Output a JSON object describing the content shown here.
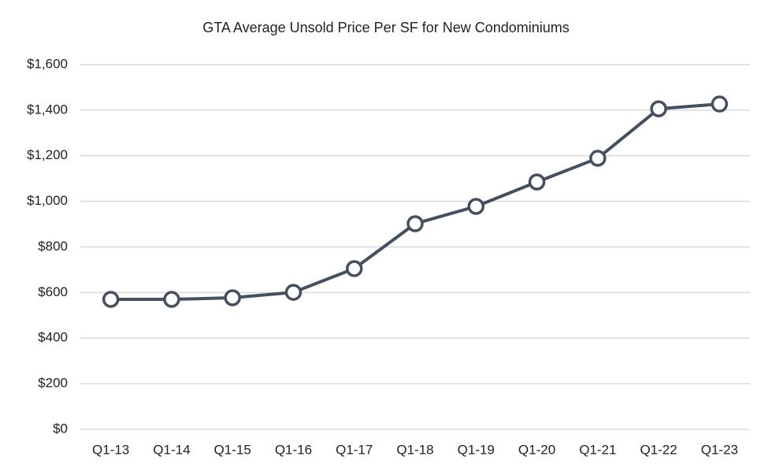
{
  "chart_data": {
    "type": "line",
    "title": "GTA Average Unsold Price Per SF for New Condominiums",
    "categories": [
      "Q1-13",
      "Q1-14",
      "Q1-15",
      "Q1-16",
      "Q1-17",
      "Q1-18",
      "Q1-19",
      "Q1-20",
      "Q1-21",
      "Q1-22",
      "Q1-23"
    ],
    "values": [
      570,
      570,
      577,
      601,
      705,
      902,
      978,
      1085,
      1189,
      1406,
      1427
    ],
    "color": "#44505f",
    "ylim": [
      0,
      1600
    ],
    "yticks": [
      {
        "value": 0,
        "label": "$0"
      },
      {
        "value": 200,
        "label": "$200"
      },
      {
        "value": 400,
        "label": "$400"
      },
      {
        "value": 600,
        "label": "$600"
      },
      {
        "value": 800,
        "label": "$800"
      },
      {
        "value": 1000,
        "label": "$1,000"
      },
      {
        "value": 1200,
        "label": "$1,200"
      },
      {
        "value": 1400,
        "label": "$1,400"
      },
      {
        "value": 1600,
        "label": "$1,600"
      }
    ],
    "grid": true
  }
}
